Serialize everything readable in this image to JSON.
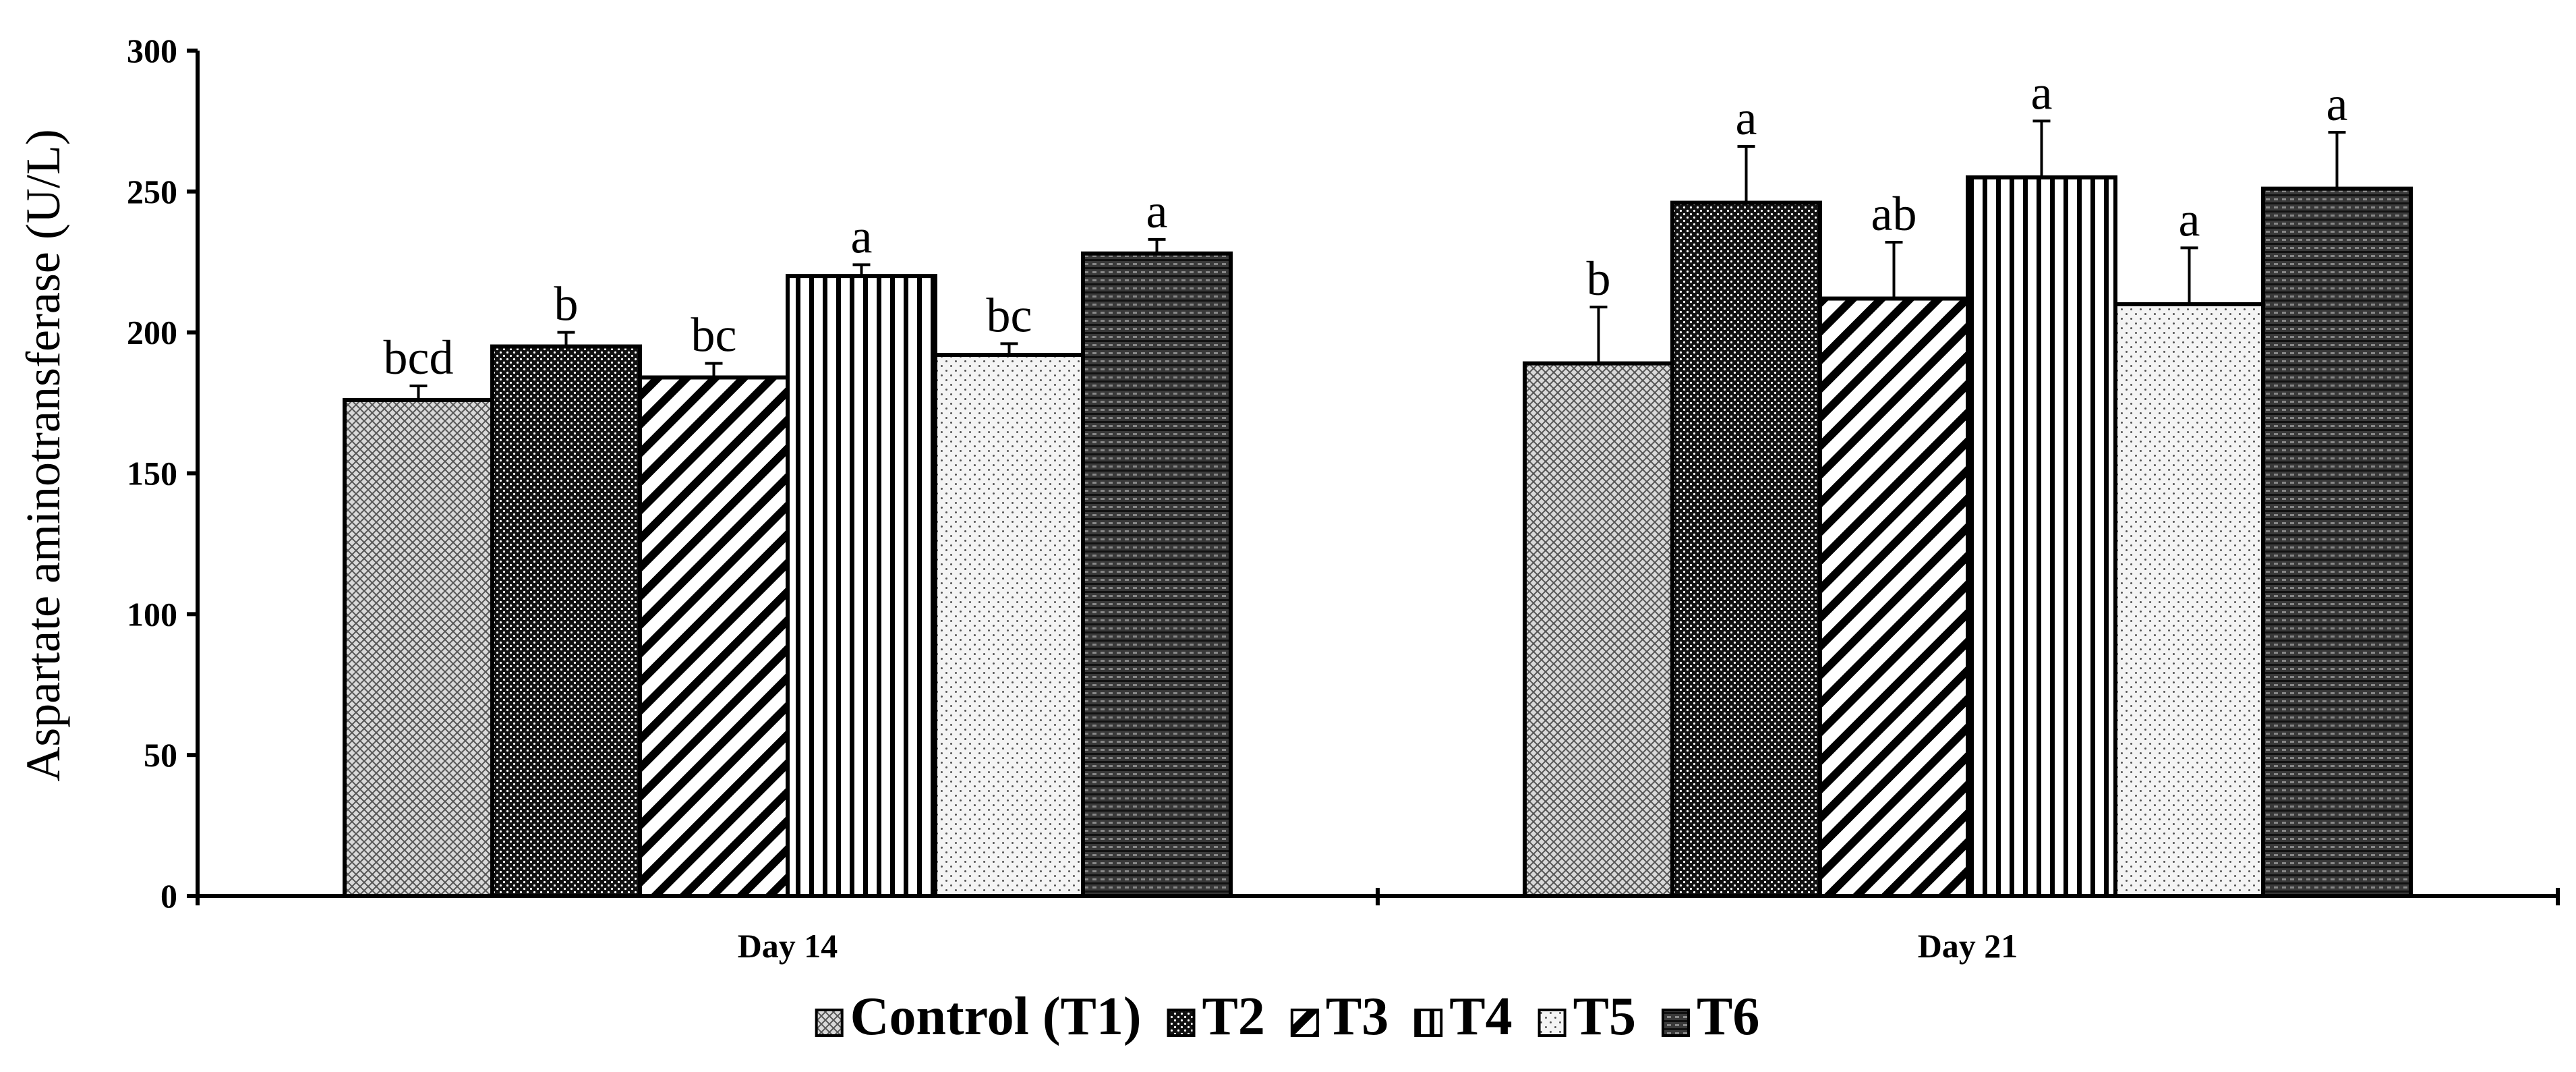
{
  "chart_data": {
    "type": "bar",
    "title": "",
    "xlabel": "",
    "ylabel": "Aspartate aminotransferase (U/L)",
    "ylim": [
      0,
      300
    ],
    "yticks": [
      0,
      50,
      100,
      150,
      200,
      250,
      300
    ],
    "categories": [
      "Day 14",
      "Day 21"
    ],
    "grid": false,
    "legend_position": "bottom",
    "series": [
      {
        "name": "Control (T1)",
        "pattern": "crosshatch-fine",
        "values": [
          176,
          189
        ],
        "errors": [
          5,
          20
        ],
        "significance": [
          "bcd",
          "b"
        ]
      },
      {
        "name": "T2",
        "pattern": "dense-dots",
        "values": [
          195,
          246
        ],
        "errors": [
          5,
          20
        ],
        "significance": [
          "b",
          "a"
        ]
      },
      {
        "name": "T3",
        "pattern": "diagonal-stripes",
        "values": [
          184,
          212
        ],
        "errors": [
          5,
          20
        ],
        "significance": [
          "bc",
          "ab"
        ]
      },
      {
        "name": "T4",
        "pattern": "vertical-stripes",
        "values": [
          220,
          255
        ],
        "errors": [
          4,
          20
        ],
        "significance": [
          "a",
          "a"
        ]
      },
      {
        "name": "T5",
        "pattern": "sparse-dots",
        "values": [
          192,
          210
        ],
        "errors": [
          4,
          20
        ],
        "significance": [
          "bc",
          "a"
        ]
      },
      {
        "name": "T6",
        "pattern": "horizontal-weave",
        "values": [
          228,
          251
        ],
        "errors": [
          5,
          20
        ],
        "significance": [
          "a",
          "a"
        ]
      }
    ],
    "colors": {
      "axis": "#000000",
      "bar_edge": "#000000",
      "background": "#ffffff"
    }
  }
}
